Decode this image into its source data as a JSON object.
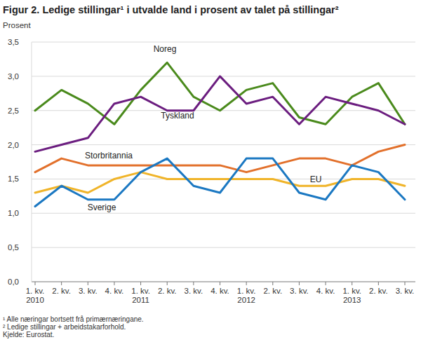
{
  "chart_data": {
    "type": "line",
    "title": "Figur 2. Ledige stillingar¹ i utvalde land i prosent av talet på stillingar²",
    "y_label": "Prosent",
    "categories": [
      "1. kv.\n2010",
      "2. kv.",
      "3. kv.",
      "4. kv.",
      "1. kv.\n2011",
      "2. kv.",
      "3. kv.",
      "4. kv.",
      "1. kv.\n2012",
      "2. kv.",
      "3. kv.",
      "4. kv.",
      "1. kv.\n2013",
      "2. kv.",
      "3. kv."
    ],
    "series": [
      {
        "name": "Noreg",
        "color": "#4a8a1c",
        "values": [
          2.5,
          2.8,
          2.6,
          2.3,
          2.8,
          3.2,
          2.7,
          2.5,
          2.8,
          2.9,
          2.4,
          2.3,
          2.7,
          2.9,
          2.3
        ]
      },
      {
        "name": "Tyskland",
        "color": "#6b1d7f",
        "values": [
          1.9,
          2.0,
          2.1,
          2.6,
          2.7,
          2.5,
          2.5,
          3.0,
          2.6,
          2.7,
          2.3,
          2.7,
          2.6,
          2.5,
          2.3
        ]
      },
      {
        "name": "Storbritannia",
        "color": "#e2702b",
        "values": [
          1.6,
          1.8,
          1.7,
          1.7,
          1.7,
          1.7,
          1.7,
          1.7,
          1.6,
          1.7,
          1.8,
          1.8,
          1.7,
          1.9,
          2.0
        ]
      },
      {
        "name": "EU",
        "color": "#f0b429",
        "values": [
          1.3,
          1.4,
          1.3,
          1.5,
          1.6,
          1.5,
          1.5,
          1.5,
          1.5,
          1.5,
          1.4,
          1.4,
          1.5,
          1.5,
          1.4
        ]
      },
      {
        "name": "Sverige",
        "color": "#1b78c2",
        "values": [
          1.1,
          1.4,
          1.2,
          1.2,
          1.6,
          1.8,
          1.4,
          1.3,
          1.8,
          1.8,
          1.3,
          1.2,
          1.7,
          1.6,
          1.2
        ]
      }
    ],
    "ylim": [
      0,
      3.5
    ],
    "yticks": [
      {
        "value": 0,
        "label": "0,0"
      },
      {
        "value": 0.5,
        "label": "0,5"
      },
      {
        "value": 1,
        "label": "1,0"
      },
      {
        "value": 1.5,
        "label": "1,5"
      },
      {
        "value": 2,
        "label": "2,0"
      },
      {
        "value": 2.5,
        "label": "2,5"
      },
      {
        "value": 3,
        "label": "3,0"
      },
      {
        "value": 3.5,
        "label": "3,5"
      }
    ],
    "grid": true,
    "footnotes": [
      "¹ Alle næringar bortsett frå primærnæringane.",
      "² Ledige stillingar + arbeidstakarforhold."
    ],
    "source": "Kjelde: Eurostat."
  }
}
